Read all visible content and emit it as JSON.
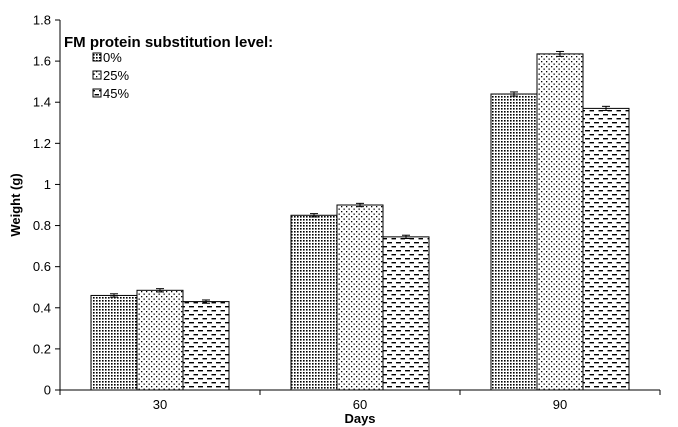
{
  "chart_data": {
    "type": "bar",
    "title": "",
    "xlabel": "Days",
    "ylabel": "Weight (g)",
    "categories": [
      "30",
      "60",
      "90"
    ],
    "ylim": [
      0,
      1.8
    ],
    "yticks": [
      "0",
      "0.2",
      "0.4",
      "0.6",
      "0.8",
      "1",
      "1.2",
      "1.4",
      "1.6",
      "1.8"
    ],
    "legend_title": "FM protein substitution level:",
    "legend_position": "top-left",
    "grid": false,
    "error_bars": true,
    "series": [
      {
        "name": "0%",
        "pattern": "dense-dots",
        "values": [
          0.46,
          0.85,
          1.44
        ],
        "errors": [
          0.008,
          0.008,
          0.01
        ]
      },
      {
        "name": "25%",
        "pattern": "sparse-dots",
        "values": [
          0.485,
          0.9,
          1.635
        ],
        "errors": [
          0.008,
          0.008,
          0.012
        ]
      },
      {
        "name": "45%",
        "pattern": "dashes",
        "values": [
          0.43,
          0.745,
          1.37
        ],
        "errors": [
          0.008,
          0.008,
          0.01
        ]
      }
    ]
  }
}
